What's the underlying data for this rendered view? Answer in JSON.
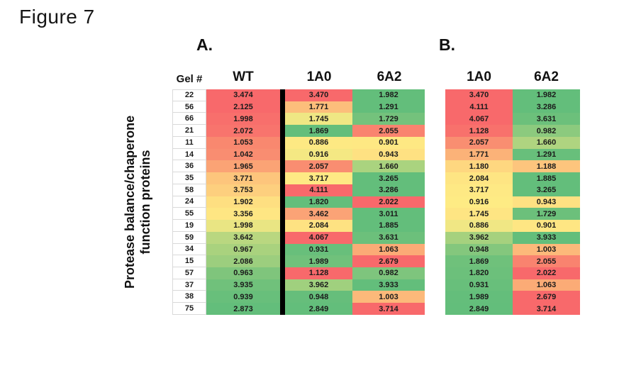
{
  "chart_data": {
    "type": "heatmap",
    "title": "Figure 7",
    "row_label_header": "Gel #",
    "ylabel": "Protease balance/chaperone function proteins",
    "ylabel_lines": [
      "Protease balance/chaperone",
      "function proteins"
    ],
    "panels": [
      {
        "label": "A.",
        "columns": [
          "WT",
          "1A0",
          "6A2"
        ]
      },
      {
        "label": "B.",
        "columns": [
          "1A0",
          "6A2"
        ]
      }
    ],
    "colorscale": {
      "low": "#F8696B",
      "mid": "#FFEB84",
      "high": "#63BE7B"
    },
    "legend": "none",
    "rows": [
      {
        "gel": "22",
        "a": [
          [
            "3.474",
            "#F8696B"
          ],
          [
            "3.470",
            "#F8696B"
          ],
          [
            "1.982",
            "#63BE7B"
          ]
        ],
        "b": [
          [
            "3.470",
            "#F8696B"
          ],
          [
            "1.982",
            "#63BE7B"
          ]
        ]
      },
      {
        "gel": "56",
        "a": [
          [
            "2.125",
            "#F8696B"
          ],
          [
            "1.771",
            "#FCBE7B"
          ],
          [
            "1.291",
            "#63BE7B"
          ]
        ],
        "b": [
          [
            "4.111",
            "#F8696B"
          ],
          [
            "3.286",
            "#63BE7B"
          ]
        ]
      },
      {
        "gel": "66",
        "a": [
          [
            "1.998",
            "#F86F6C"
          ],
          [
            "1.745",
            "#EFE784"
          ],
          [
            "1.729",
            "#74C27C"
          ]
        ],
        "b": [
          [
            "4.067",
            "#F8696B"
          ],
          [
            "3.631",
            "#6CC07B"
          ]
        ]
      },
      {
        "gel": "21",
        "a": [
          [
            "2.072",
            "#F8746D"
          ],
          [
            "1.869",
            "#63BE7B"
          ],
          [
            "2.055",
            "#F9836F"
          ]
        ],
        "b": [
          [
            "1.128",
            "#F8716C"
          ],
          [
            "0.982",
            "#8CCA7E"
          ]
        ]
      },
      {
        "gel": "11",
        "a": [
          [
            "1.053",
            "#F9886F"
          ],
          [
            "0.886",
            "#FDE983"
          ],
          [
            "0.901",
            "#FEE883"
          ]
        ],
        "b": [
          [
            "2.057",
            "#F98E71"
          ],
          [
            "1.660",
            "#AFD480"
          ]
        ]
      },
      {
        "gel": "14",
        "a": [
          [
            "1.042",
            "#F98D71"
          ],
          [
            "0.916",
            "#F4E883"
          ],
          [
            "0.943",
            "#FEE182"
          ]
        ],
        "b": [
          [
            "1.771",
            "#FBB278"
          ],
          [
            "1.291",
            "#68BF7B"
          ]
        ]
      },
      {
        "gel": "36",
        "a": [
          [
            "1.965",
            "#FBA375"
          ],
          [
            "2.057",
            "#F98D71"
          ],
          [
            "1.660",
            "#AAD37F"
          ]
        ],
        "b": [
          [
            "1.180",
            "#FED780"
          ],
          [
            "1.188",
            "#FDC57D"
          ]
        ]
      },
      {
        "gel": "35",
        "a": [
          [
            "3.771",
            "#FDC57C"
          ],
          [
            "3.717",
            "#FEE984"
          ],
          [
            "3.265",
            "#63BE7B"
          ]
        ],
        "b": [
          [
            "2.084",
            "#FEE583"
          ],
          [
            "1.885",
            "#63BE7B"
          ]
        ]
      },
      {
        "gel": "58",
        "a": [
          [
            "3.753",
            "#FDCF7E"
          ],
          [
            "4.111",
            "#F8696B"
          ],
          [
            "3.286",
            "#63BE7B"
          ]
        ],
        "b": [
          [
            "3.717",
            "#FEE984"
          ],
          [
            "3.265",
            "#63BE7B"
          ]
        ]
      },
      {
        "gel": "24",
        "a": [
          [
            "1.902",
            "#FEDF81"
          ],
          [
            "1.820",
            "#63BE7B"
          ],
          [
            "2.022",
            "#F8696B"
          ]
        ],
        "b": [
          [
            "0.916",
            "#FEEB84"
          ],
          [
            "0.943",
            "#FEE182"
          ]
        ]
      },
      {
        "gel": "55",
        "a": [
          [
            "3.356",
            "#FEE683"
          ],
          [
            "3.462",
            "#FBA376"
          ],
          [
            "3.011",
            "#63BE7B"
          ]
        ],
        "b": [
          [
            "1.745",
            "#FEE583"
          ],
          [
            "1.729",
            "#6CC07B"
          ]
        ]
      },
      {
        "gel": "19",
        "a": [
          [
            "1.998",
            "#E9E583"
          ],
          [
            "2.084",
            "#FEE282"
          ],
          [
            "1.885",
            "#63BE7B"
          ]
        ],
        "b": [
          [
            "0.886",
            "#F0E784"
          ],
          [
            "0.901",
            "#FEE683"
          ]
        ]
      },
      {
        "gel": "59",
        "a": [
          [
            "3.642",
            "#B9D780"
          ],
          [
            "4.067",
            "#F8696B"
          ],
          [
            "3.631",
            "#6CC07B"
          ]
        ],
        "b": [
          [
            "3.962",
            "#A6D17E"
          ],
          [
            "3.933",
            "#63BE7B"
          ]
        ]
      },
      {
        "gel": "34",
        "a": [
          [
            "0.967",
            "#A9D27E"
          ],
          [
            "0.931",
            "#68BF7B"
          ],
          [
            "1.063",
            "#FBAB76"
          ]
        ],
        "b": [
          [
            "0.948",
            "#84C77D"
          ],
          [
            "1.003",
            "#FCB97A"
          ]
        ]
      },
      {
        "gel": "15",
        "a": [
          [
            "2.086",
            "#9CCE7E"
          ],
          [
            "1.989",
            "#70C17B"
          ],
          [
            "2.679",
            "#F8696B"
          ]
        ],
        "b": [
          [
            "1.869",
            "#6FC17B"
          ],
          [
            "2.055",
            "#F9836F"
          ]
        ]
      },
      {
        "gel": "57",
        "a": [
          [
            "0.963",
            "#7FC57C"
          ],
          [
            "1.128",
            "#F8696B"
          ],
          [
            "0.982",
            "#7EC57D"
          ]
        ],
        "b": [
          [
            "1.820",
            "#6CC07B"
          ],
          [
            "2.022",
            "#F8696B"
          ]
        ]
      },
      {
        "gel": "37",
        "a": [
          [
            "3.935",
            "#70C17B"
          ],
          [
            "3.962",
            "#A0D07E"
          ],
          [
            "3.933",
            "#63BE7B"
          ]
        ],
        "b": [
          [
            "0.931",
            "#68BF7B"
          ],
          [
            "1.063",
            "#FBAB76"
          ]
        ]
      },
      {
        "gel": "38",
        "a": [
          [
            "0.939",
            "#68BF7B"
          ],
          [
            "0.948",
            "#66BE7B"
          ],
          [
            "1.003",
            "#FCB97A"
          ]
        ],
        "b": [
          [
            "1.989",
            "#64BE7B"
          ],
          [
            "2.679",
            "#F8696B"
          ]
        ]
      },
      {
        "gel": "75",
        "a": [
          [
            "2.873",
            "#63BE7B"
          ],
          [
            "2.849",
            "#63BE7B"
          ],
          [
            "3.714",
            "#F8696B"
          ]
        ],
        "b": [
          [
            "2.849",
            "#63BE7B"
          ],
          [
            "3.714",
            "#F8696B"
          ]
        ]
      }
    ]
  }
}
